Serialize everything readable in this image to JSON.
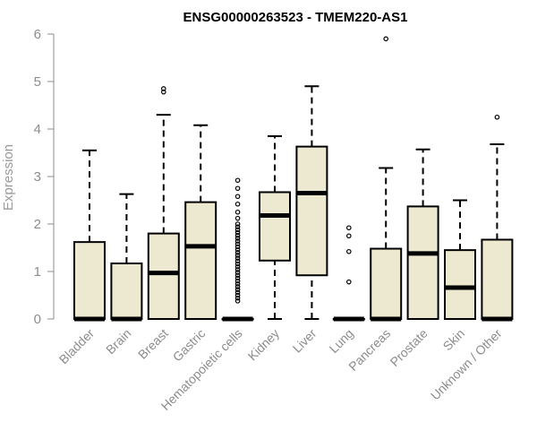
{
  "chart_data": {
    "type": "boxplot",
    "title": "ENSG00000263523 - TMEM220-AS1",
    "xlabel": "",
    "ylabel": "Expression",
    "ylim": [
      0,
      6
    ],
    "yticks": [
      0,
      1,
      2,
      3,
      4,
      5,
      6
    ],
    "grid": false,
    "box_color": "#ede8d0",
    "categories": [
      "Bladder",
      "Brain",
      "Breast",
      "Gastric",
      "Hematopoietic cells",
      "Kidney",
      "Liver",
      "Lung",
      "Pancreas",
      "Prostate",
      "Skin",
      "Unknown / Other"
    ],
    "boxes": [
      {
        "min": 0,
        "q1": 0,
        "median": 0,
        "q3": 1.62,
        "max": 3.55,
        "outliers": []
      },
      {
        "min": 0,
        "q1": 0,
        "median": 0,
        "q3": 1.17,
        "max": 2.63,
        "outliers": []
      },
      {
        "min": 0,
        "q1": 0,
        "median": 0.97,
        "q3": 1.8,
        "max": 4.3,
        "outliers": [
          4.78,
          4.85
        ]
      },
      {
        "min": 0,
        "q1": 0,
        "median": 1.53,
        "q3": 2.46,
        "max": 4.08,
        "outliers": []
      },
      {
        "min": 0,
        "q1": 0,
        "median": 0,
        "q3": 0,
        "max": 0,
        "outliers": [
          0.38,
          0.44,
          0.5,
          0.56,
          0.62,
          0.68,
          0.74,
          0.8,
          0.86,
          0.92,
          0.98,
          1.04,
          1.1,
          1.16,
          1.22,
          1.28,
          1.34,
          1.4,
          1.46,
          1.52,
          1.58,
          1.64,
          1.7,
          1.76,
          1.82,
          1.88,
          1.94,
          2.0,
          2.12,
          2.25,
          2.42,
          2.58,
          2.75,
          2.92
        ]
      },
      {
        "min": 0,
        "q1": 1.23,
        "median": 2.18,
        "q3": 2.67,
        "max": 3.85,
        "outliers": []
      },
      {
        "min": 0,
        "q1": 0.92,
        "median": 2.65,
        "q3": 3.63,
        "max": 4.9,
        "outliers": []
      },
      {
        "min": 0,
        "q1": 0,
        "median": 0,
        "q3": 0,
        "max": 0,
        "outliers": [
          0.78,
          1.42,
          1.75,
          1.92
        ]
      },
      {
        "min": 0,
        "q1": 0,
        "median": 0,
        "q3": 1.48,
        "max": 3.18,
        "outliers": [
          5.9
        ]
      },
      {
        "min": 0,
        "q1": 0,
        "median": 1.38,
        "q3": 2.37,
        "max": 3.57,
        "outliers": []
      },
      {
        "min": 0,
        "q1": 0,
        "median": 0.66,
        "q3": 1.45,
        "max": 2.5,
        "outliers": []
      },
      {
        "min": 0,
        "q1": 0,
        "median": 0,
        "q3": 1.67,
        "max": 3.68,
        "outliers": [
          4.25
        ]
      }
    ]
  }
}
